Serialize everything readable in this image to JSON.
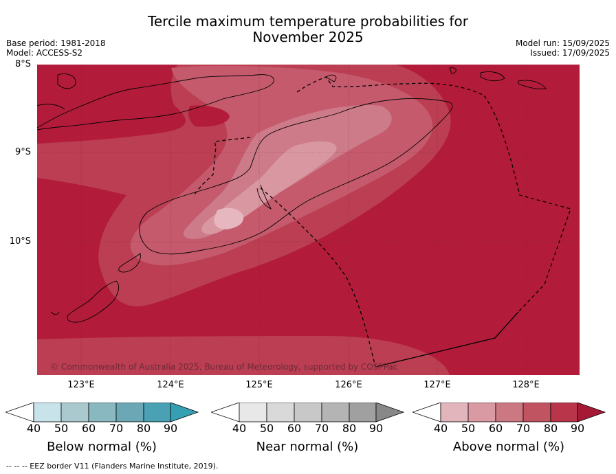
{
  "title_line1": "Tercile maximum temperature probabilities for",
  "title_line2": "November 2025",
  "meta_left": {
    "line1": "Base period: 1981-2018",
    "line2": "Model: ACCESS-S2"
  },
  "meta_right": {
    "line1": "Model run: 15/09/2025",
    "line2": "Issued: 17/09/2025"
  },
  "lat_labels": [
    "8°S",
    "9°S",
    "10°S"
  ],
  "lon_labels": [
    "123°E",
    "124°E",
    "125°E",
    "126°E",
    "127°E",
    "128°E"
  ],
  "copyright": "© Commonwealth of Australia 2025, Bureau of Meteorology, supported by COSPPac",
  "footer": "--  --  -- EEZ border V11 (Flanders Marine Institute, 2019).",
  "legends": [
    {
      "title": "Below normal (%)",
      "ticks": [
        "40",
        "50",
        "60",
        "70",
        "80",
        "90"
      ],
      "colors": [
        "#c8e3ea",
        "#a9c9cf",
        "#89b8c1",
        "#6ba7b5",
        "#4aa1b3",
        "#35a0b4"
      ]
    },
    {
      "title": "Near normal (%)",
      "ticks": [
        "40",
        "50",
        "60",
        "70",
        "80",
        "90"
      ],
      "colors": [
        "#e8e8e8",
        "#d9d9d9",
        "#c8c8c8",
        "#b4b4b4",
        "#a0a0a0",
        "#888888"
      ]
    },
    {
      "title": "Above normal (%)",
      "ticks": [
        "40",
        "50",
        "60",
        "70",
        "80",
        "90"
      ],
      "colors": [
        "#e2b5bc",
        "#d99aa3",
        "#cc7882",
        "#c05461",
        "#b8354a",
        "#a61935"
      ]
    }
  ],
  "map_colors": {
    "c90": "#b21c3a",
    "c80": "#bb3e53",
    "c70": "#c45a6c",
    "c60": "#cd7a89",
    "c50": "#d997a2",
    "c40": "#e6b7bf"
  }
}
